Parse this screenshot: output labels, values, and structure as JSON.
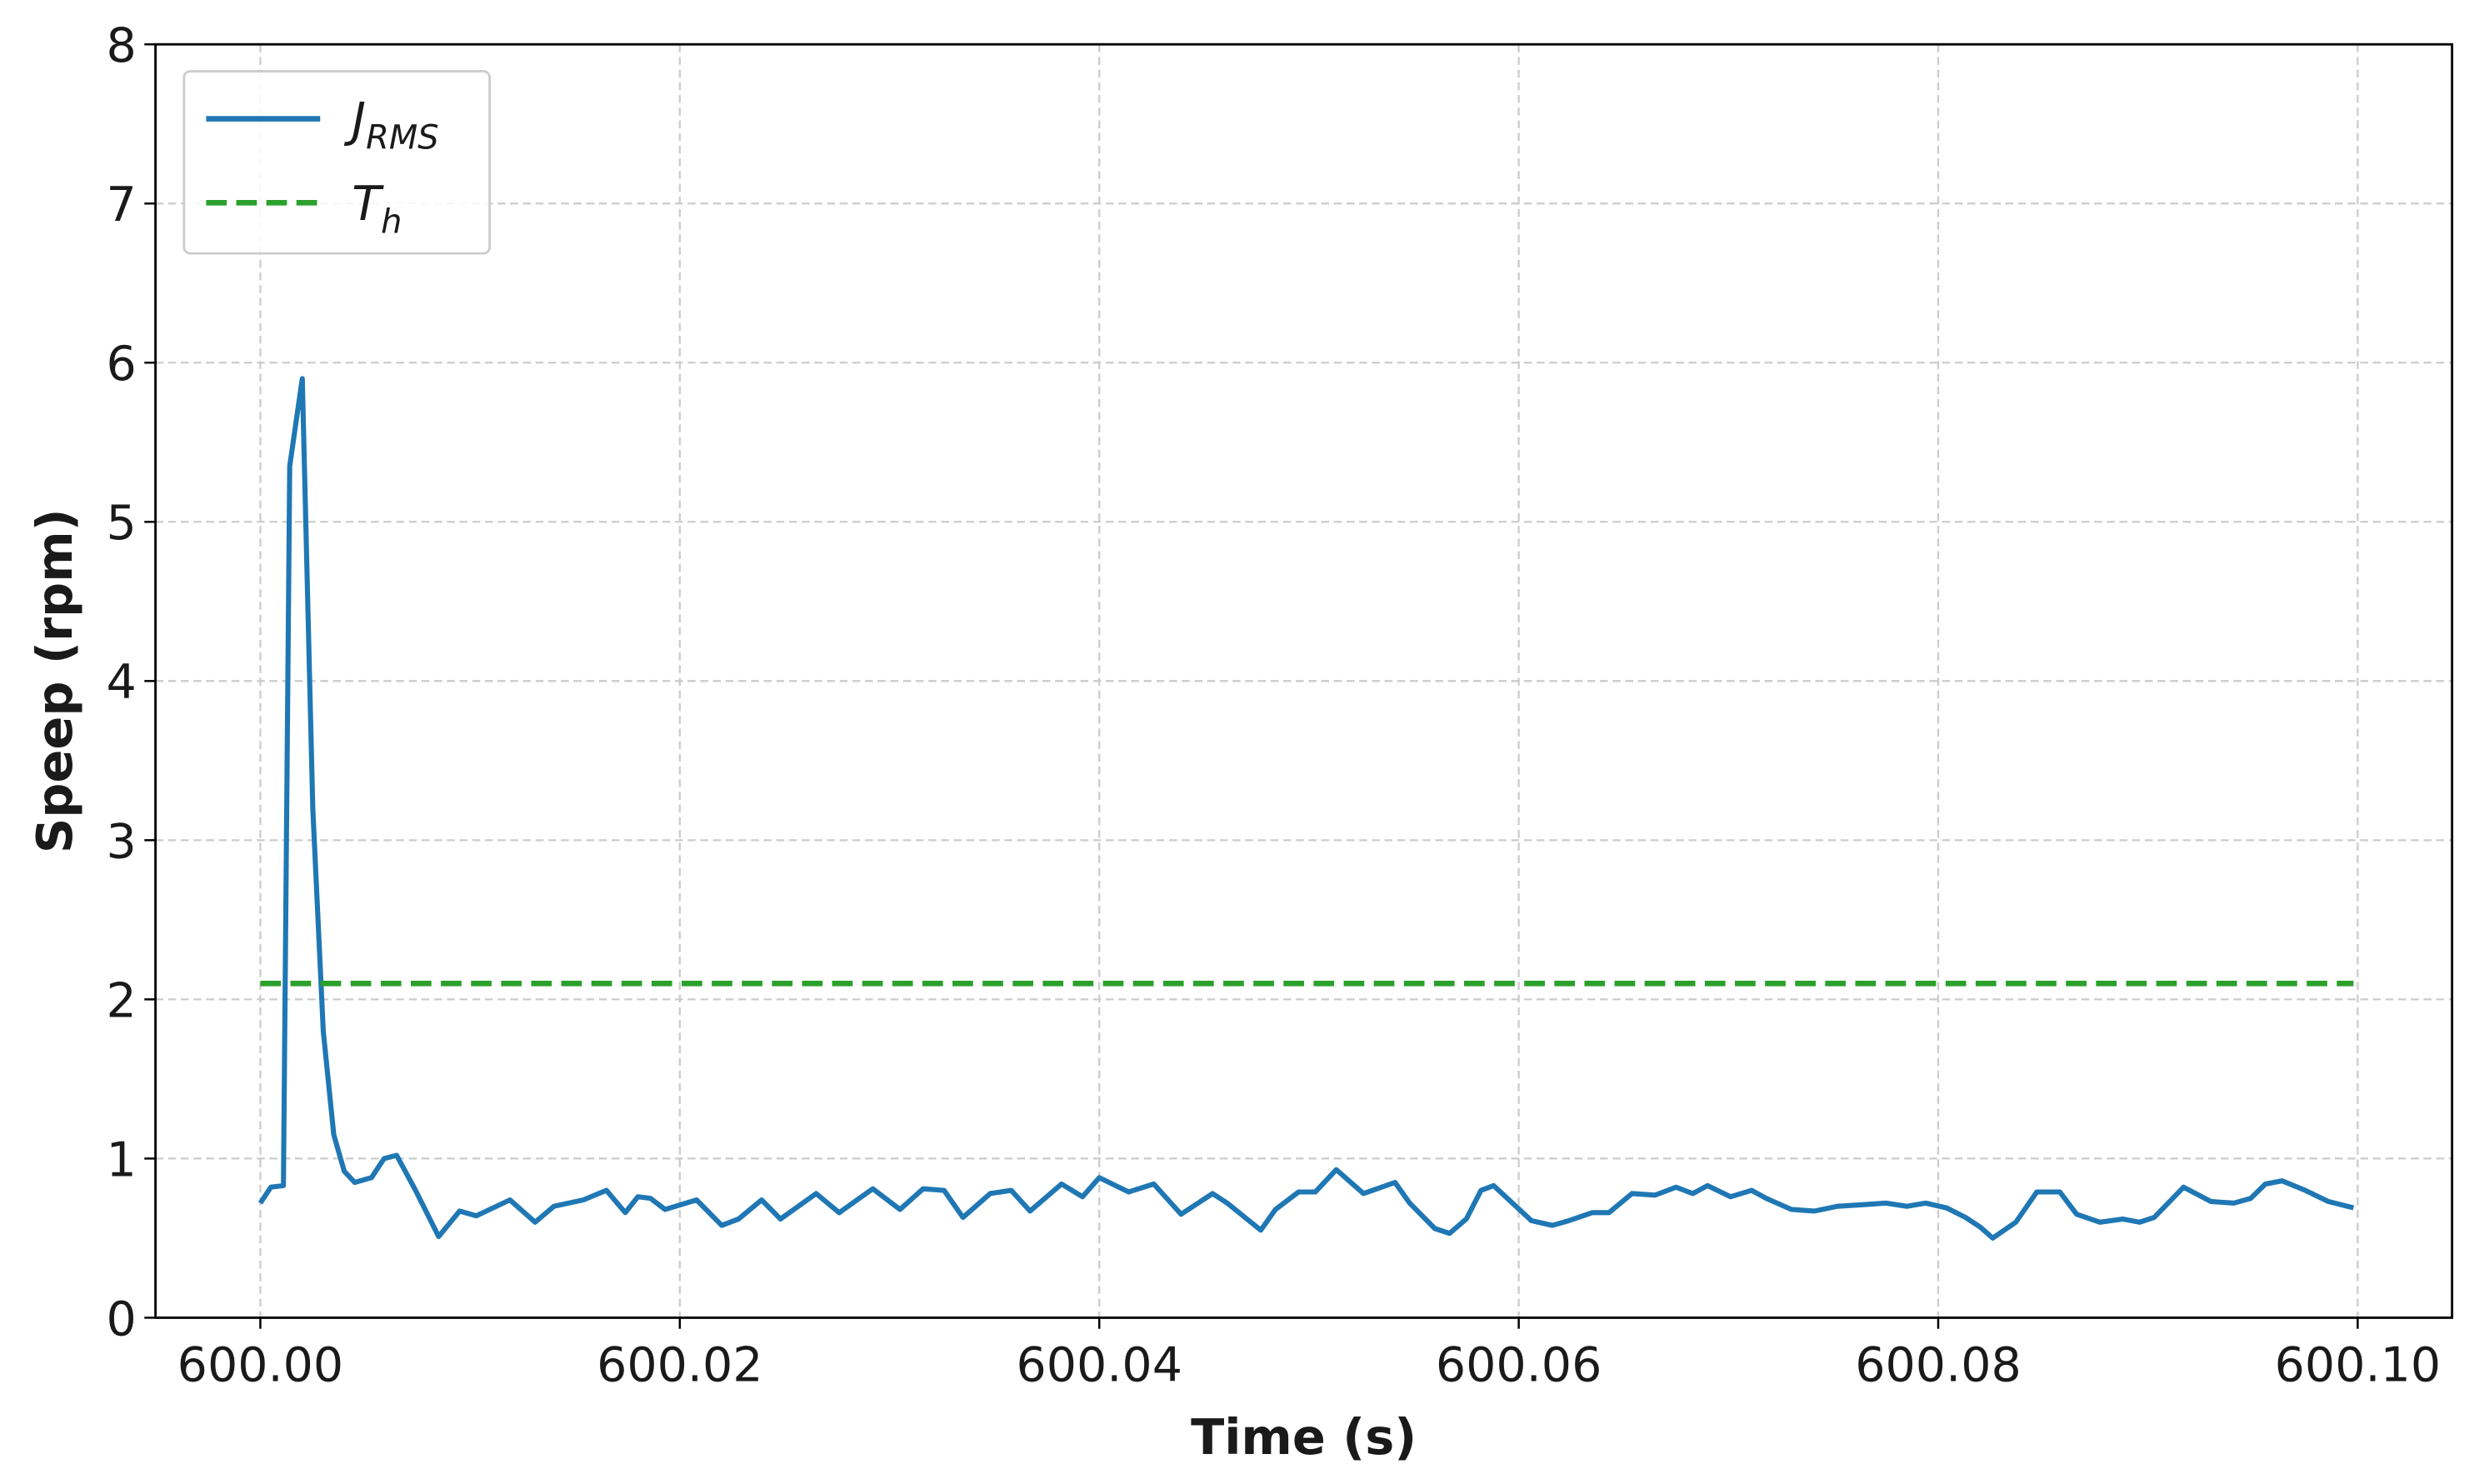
{
  "chart_data": {
    "type": "line",
    "xlabel": "Time (s)",
    "ylabel": "Speep (rpm)",
    "xlim": [
      599.995,
      600.1045
    ],
    "ylim": [
      0,
      8
    ],
    "xticks": [
      {
        "value": 600.0,
        "label": "600.00"
      },
      {
        "value": 600.02,
        "label": "600.02"
      },
      {
        "value": 600.04,
        "label": "600.04"
      },
      {
        "value": 600.06,
        "label": "600.06"
      },
      {
        "value": 600.08,
        "label": "600.08"
      },
      {
        "value": 600.1,
        "label": "600.10"
      }
    ],
    "yticks": [
      0,
      1,
      2,
      3,
      4,
      5,
      6,
      7,
      8
    ],
    "grid": true,
    "legend": "upper left",
    "series": [
      {
        "name": "J_RMS",
        "color": "#1f77b4",
        "style": "solid",
        "x": [
          600.0,
          600.0005,
          600.0011,
          600.0014,
          600.002,
          600.0025,
          600.003,
          600.0035,
          600.004,
          600.0045,
          600.0053,
          600.0059,
          600.0065,
          600.0074,
          600.0085,
          600.0095,
          600.0103,
          600.0119,
          600.0131,
          600.014,
          600.0154,
          600.0165,
          600.0174,
          600.018,
          600.0186,
          600.0193,
          600.0208,
          600.022,
          600.0228,
          600.0239,
          600.0248,
          600.0265,
          600.0276,
          600.0292,
          600.0305,
          600.0316,
          600.0326,
          600.0335,
          600.0348,
          600.0358,
          600.0367,
          600.0382,
          600.0392,
          600.04,
          600.0414,
          600.0426,
          600.0439,
          600.0454,
          600.0461,
          600.0477,
          600.0484,
          600.0495,
          600.0503,
          600.0513,
          600.0526,
          600.0541,
          600.0548,
          600.056,
          600.0567,
          600.0575,
          600.0582,
          600.0588,
          600.0597,
          600.0606,
          600.0616,
          600.0624,
          600.0635,
          600.0643,
          600.0654,
          600.0665,
          600.0675,
          600.0683,
          600.069,
          600.0701,
          600.0711,
          600.0718,
          600.073,
          600.0741,
          600.0752,
          600.0764,
          600.0775,
          600.0785,
          600.0794,
          600.0804,
          600.0813,
          600.082,
          600.0826,
          600.0837,
          600.0847,
          600.0858,
          600.0866,
          600.0877,
          600.0888,
          600.0896,
          600.0903,
          600.0917,
          600.093,
          600.0941,
          600.0949,
          600.0956,
          600.0964,
          600.0975,
          600.0986,
          600.0998
        ],
        "values": [
          0.72,
          0.82,
          0.83,
          5.35,
          5.9,
          3.2,
          1.8,
          1.15,
          0.92,
          0.85,
          0.88,
          1.0,
          1.02,
          0.8,
          0.51,
          0.67,
          0.64,
          0.74,
          0.6,
          0.7,
          0.74,
          0.8,
          0.66,
          0.76,
          0.75,
          0.68,
          0.74,
          0.58,
          0.62,
          0.74,
          0.62,
          0.78,
          0.66,
          0.81,
          0.68,
          0.81,
          0.8,
          0.63,
          0.78,
          0.8,
          0.67,
          0.84,
          0.76,
          0.88,
          0.79,
          0.84,
          0.65,
          0.78,
          0.72,
          0.55,
          0.68,
          0.79,
          0.79,
          0.93,
          0.78,
          0.85,
          0.72,
          0.56,
          0.53,
          0.62,
          0.8,
          0.83,
          0.72,
          0.61,
          0.58,
          0.61,
          0.66,
          0.66,
          0.78,
          0.77,
          0.82,
          0.78,
          0.83,
          0.76,
          0.8,
          0.75,
          0.68,
          0.67,
          0.7,
          0.71,
          0.72,
          0.7,
          0.72,
          0.69,
          0.63,
          0.57,
          0.5,
          0.6,
          0.79,
          0.79,
          0.65,
          0.6,
          0.62,
          0.6,
          0.63,
          0.82,
          0.73,
          0.72,
          0.75,
          0.84,
          0.86,
          0.8,
          0.73,
          0.69
        ]
      },
      {
        "name": "T_h",
        "color": "#2ca02c",
        "style": "dashed",
        "x": [
          600.0,
          600.0998
        ],
        "values": [
          2.1,
          2.1
        ]
      }
    ]
  }
}
